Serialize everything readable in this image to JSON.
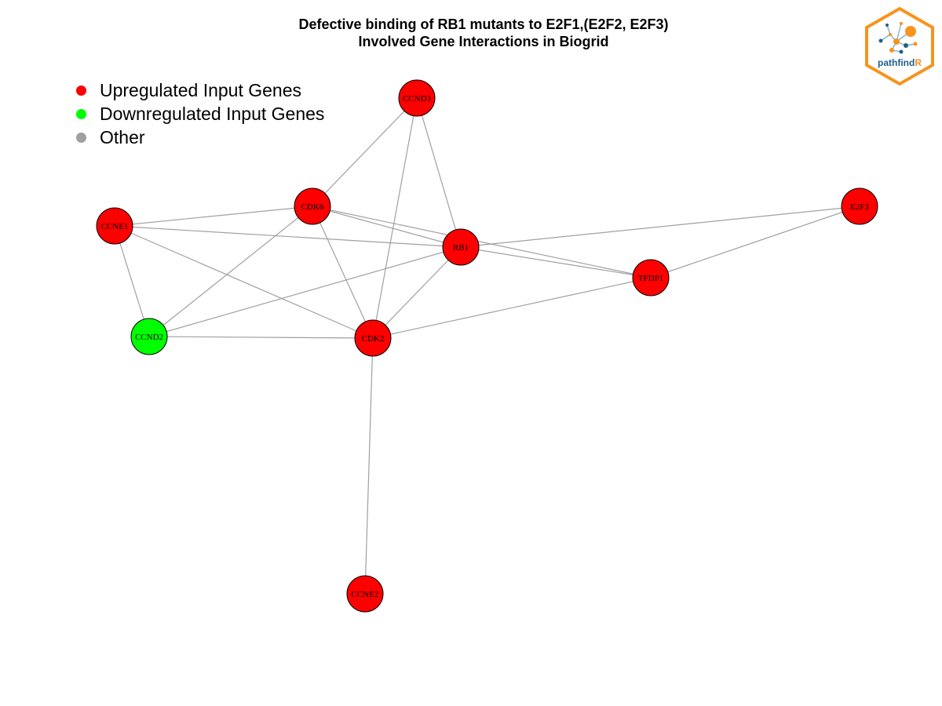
{
  "title": {
    "line1": "Defective binding of RB1 mutants to E2F1,(E2F2, E2F3)",
    "line2": "Involved Gene Interactions in Biogrid"
  },
  "legend": [
    {
      "label": "Upregulated Input Genes",
      "color": "#ff0000"
    },
    {
      "label": "Downregulated Input Genes",
      "color": "#00ff00"
    },
    {
      "label": "Other",
      "color": "#a0a0a0"
    }
  ],
  "logo": {
    "text_main": "pathfind",
    "text_accent": "R",
    "frame_color": "#f7931e",
    "text_color": "#1f5f8b"
  },
  "colors": {
    "edge": "#a0a0a0",
    "node_border": "#000000",
    "upregulated": "#ff0000",
    "downregulated": "#00ff00"
  },
  "nodes": [
    {
      "id": "CCND3",
      "label": "CCND3",
      "regulation": "up"
    },
    {
      "id": "CDK6",
      "label": "CDK6",
      "regulation": "up"
    },
    {
      "id": "CCNE1",
      "label": "CCNE1",
      "regulation": "up"
    },
    {
      "id": "RB1",
      "label": "RB1",
      "regulation": "up"
    },
    {
      "id": "E2F3",
      "label": "E2F3",
      "regulation": "up"
    },
    {
      "id": "TFDP1",
      "label": "TFDP1",
      "regulation": "up"
    },
    {
      "id": "CCND2",
      "label": "CCND2",
      "regulation": "down"
    },
    {
      "id": "CDK2",
      "label": "CDK2",
      "regulation": "up"
    },
    {
      "id": "CCNE2",
      "label": "CCNE2",
      "regulation": "up"
    }
  ],
  "edges": [
    [
      "CCND3",
      "CDK6"
    ],
    [
      "CCND3",
      "RB1"
    ],
    [
      "CCND3",
      "CDK2"
    ],
    [
      "CDK6",
      "CCNE1"
    ],
    [
      "CDK6",
      "RB1"
    ],
    [
      "CDK6",
      "TFDP1"
    ],
    [
      "CDK6",
      "CCND2"
    ],
    [
      "CDK6",
      "CDK2"
    ],
    [
      "CCNE1",
      "RB1"
    ],
    [
      "CCNE1",
      "CCND2"
    ],
    [
      "CCNE1",
      "CDK2"
    ],
    [
      "RB1",
      "E2F3"
    ],
    [
      "RB1",
      "TFDP1"
    ],
    [
      "RB1",
      "CCND2"
    ],
    [
      "RB1",
      "CDK2"
    ],
    [
      "E2F3",
      "TFDP1"
    ],
    [
      "TFDP1",
      "CDK2"
    ],
    [
      "CCND2",
      "CDK2"
    ],
    [
      "CDK2",
      "CCNE2"
    ]
  ]
}
